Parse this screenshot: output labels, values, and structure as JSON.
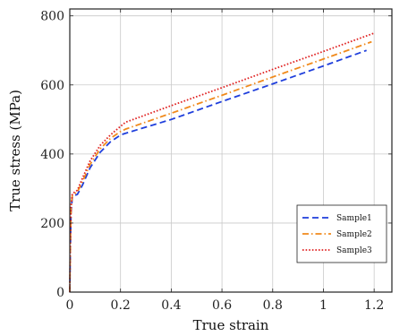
{
  "chart_data": {
    "type": "line",
    "xlabel": "True strain",
    "ylabel": "True stress (MPa)",
    "xlim": [
      0,
      1.27
    ],
    "ylim": [
      0,
      820
    ],
    "grid": true,
    "legend_position": "bottom-right",
    "x_ticks": [
      0,
      0.2,
      0.4,
      0.6,
      0.8,
      1,
      1.2
    ],
    "x_tick_labels": [
      "0",
      "0.2",
      "0.4",
      "0.6",
      "0.8",
      "1",
      "1.2"
    ],
    "y_ticks": [
      0,
      200,
      400,
      600,
      800
    ],
    "y_tick_labels": [
      "0",
      "200",
      "400",
      "600",
      "800"
    ],
    "series": [
      {
        "name": "Sample1",
        "color": "#1f3fdc",
        "dash": "dashed",
        "x": [
          0,
          0.002,
          0.005,
          0.01,
          0.02,
          0.03,
          0.05,
          0.08,
          0.12,
          0.16,
          0.2,
          0.22,
          0.4,
          0.6,
          0.8,
          1.0,
          1.17
        ],
        "y": [
          0,
          120,
          230,
          275,
          280,
          283,
          310,
          360,
          405,
          435,
          455,
          460,
          500,
          552,
          603,
          655,
          700
        ]
      },
      {
        "name": "Sample2",
        "color": "#f08a1c",
        "dash": "dashdot",
        "x": [
          0,
          0.002,
          0.005,
          0.01,
          0.02,
          0.03,
          0.05,
          0.08,
          0.12,
          0.16,
          0.2,
          0.22,
          0.4,
          0.6,
          0.8,
          1.0,
          1.19
        ],
        "y": [
          0,
          130,
          240,
          280,
          285,
          290,
          320,
          370,
          415,
          445,
          465,
          472,
          518,
          570,
          623,
          675,
          725
        ]
      },
      {
        "name": "Sample3",
        "color": "#e02222",
        "dash": "dotted",
        "x": [
          0,
          0.002,
          0.005,
          0.01,
          0.02,
          0.03,
          0.05,
          0.08,
          0.12,
          0.16,
          0.2,
          0.22,
          0.4,
          0.6,
          0.8,
          1.0,
          1.2
        ],
        "y": [
          0,
          140,
          250,
          285,
          290,
          295,
          330,
          380,
          425,
          455,
          480,
          492,
          540,
          592,
          645,
          697,
          750
        ]
      }
    ]
  }
}
